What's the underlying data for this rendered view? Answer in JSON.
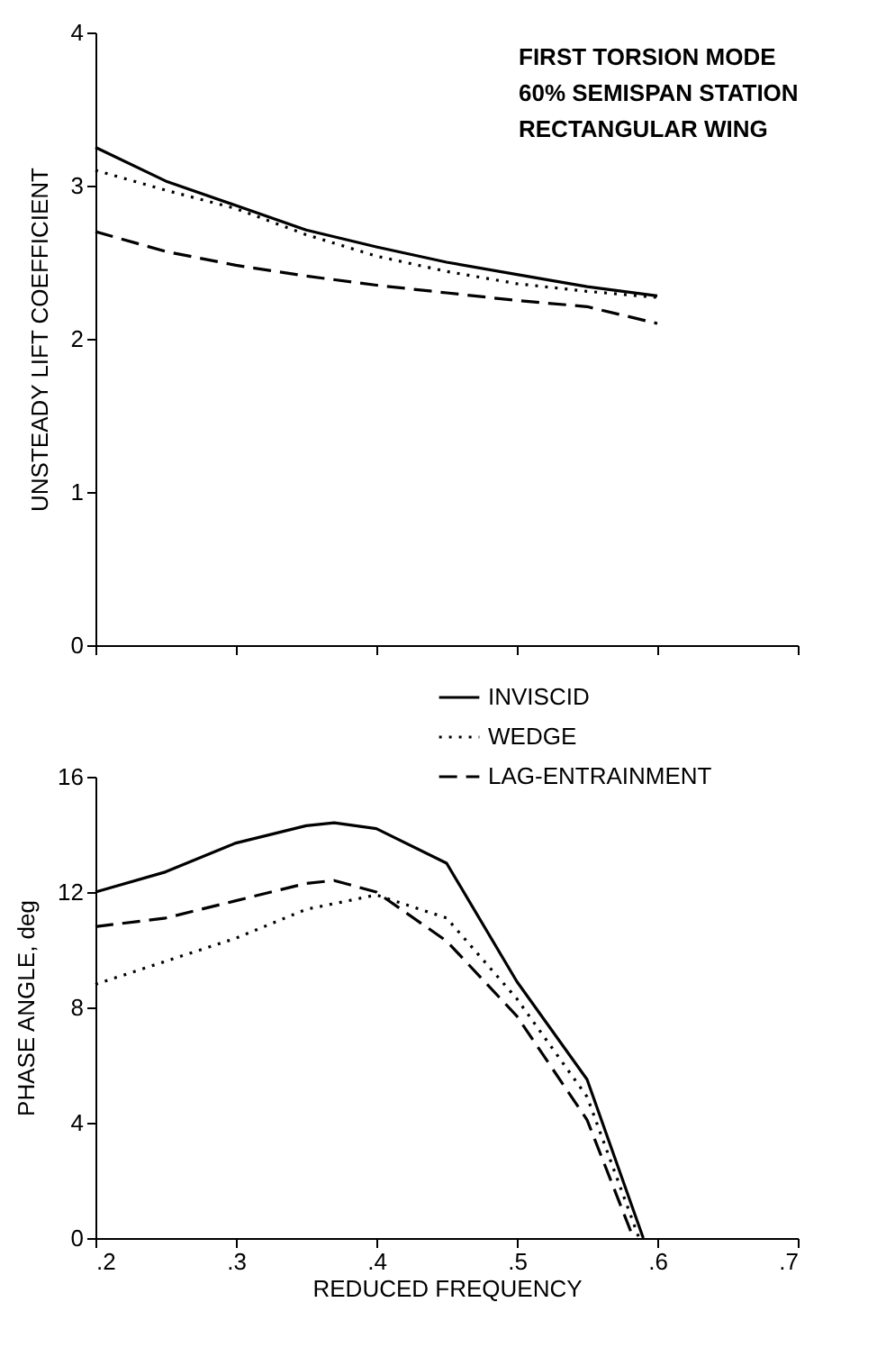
{
  "chart_data": [
    {
      "type": "line",
      "ylabel": "UNSTEADY LIFT COEFFICIENT",
      "annotations": [
        "FIRST TORSION MODE",
        "60% SEMISPAN STATION",
        "RECTANGULAR WING"
      ],
      "xlim": [
        0.2,
        0.7
      ],
      "xticks": [
        {
          "value": 0.2,
          "label": null
        },
        {
          "value": 0.3,
          "label": null
        },
        {
          "value": 0.4,
          "label": null
        },
        {
          "value": 0.5,
          "label": null
        },
        {
          "value": 0.6,
          "label": null
        },
        {
          "value": 0.7,
          "label": null
        }
      ],
      "ylim": [
        0,
        4
      ],
      "yticks": [
        0,
        1,
        2,
        3,
        4
      ],
      "tick_labels": "y",
      "grid": false,
      "series": [
        {
          "color": "#000000",
          "line_style": "solid",
          "x": [
            0.2,
            0.25,
            0.3,
            0.35,
            0.4,
            0.45,
            0.5,
            0.55,
            0.6
          ],
          "values": [
            3.25,
            3.03,
            2.87,
            2.71,
            2.6,
            2.5,
            2.42,
            2.34,
            2.28
          ]
        },
        {
          "color": "#000000",
          "line_style": "dotted",
          "x": [
            0.2,
            0.25,
            0.3,
            0.35,
            0.4,
            0.45,
            0.5,
            0.55,
            0.6
          ],
          "values": [
            3.1,
            2.97,
            2.85,
            2.68,
            2.54,
            2.44,
            2.36,
            2.31,
            2.27
          ]
        },
        {
          "color": "#000000",
          "line_style": "dashed",
          "x": [
            0.2,
            0.25,
            0.3,
            0.35,
            0.4,
            0.45,
            0.5,
            0.55,
            0.6
          ],
          "values": [
            2.7,
            2.57,
            2.48,
            2.41,
            2.35,
            2.3,
            2.25,
            2.21,
            2.1
          ]
        }
      ]
    },
    {
      "type": "line",
      "xlabel": "REDUCED FREQUENCY",
      "ylabel": "PHASE ANGLE, deg",
      "xlim": [
        0.2,
        0.7
      ],
      "xticks": [
        {
          "value": 0.2,
          "label": ".2"
        },
        {
          "value": 0.3,
          "label": ".3"
        },
        {
          "value": 0.4,
          "label": ".4"
        },
        {
          "value": 0.5,
          "label": ".5"
        },
        {
          "value": 0.6,
          "label": ".6"
        },
        {
          "value": 0.7,
          "label": ".7"
        }
      ],
      "ylim": [
        0,
        16
      ],
      "yticks": [
        0,
        4,
        8,
        12,
        16
      ],
      "grid": false,
      "legend": "top right",
      "series": [
        {
          "name": "INVISCID",
          "color": "#000000",
          "line_style": "solid",
          "x": [
            0.2,
            0.25,
            0.3,
            0.35,
            0.37,
            0.4,
            0.45,
            0.5,
            0.55,
            0.59
          ],
          "values": [
            12.0,
            12.7,
            13.7,
            14.3,
            14.4,
            14.2,
            13.0,
            8.9,
            5.5,
            0
          ]
        },
        {
          "name": "WEDGE",
          "color": "#000000",
          "line_style": "dotted",
          "x": [
            0.2,
            0.25,
            0.3,
            0.35,
            0.4,
            0.45,
            0.5,
            0.55,
            0.587
          ],
          "values": [
            8.8,
            9.6,
            10.4,
            11.4,
            11.9,
            11.1,
            8.3,
            4.9,
            0
          ]
        },
        {
          "name": "LAG-ENTRAINMENT",
          "color": "#000000",
          "line_style": "dashed",
          "x": [
            0.2,
            0.25,
            0.3,
            0.35,
            0.37,
            0.4,
            0.45,
            0.5,
            0.55,
            0.583
          ],
          "values": [
            10.8,
            11.1,
            11.7,
            12.3,
            12.4,
            12.0,
            10.3,
            7.7,
            4.1,
            0
          ]
        }
      ]
    }
  ]
}
